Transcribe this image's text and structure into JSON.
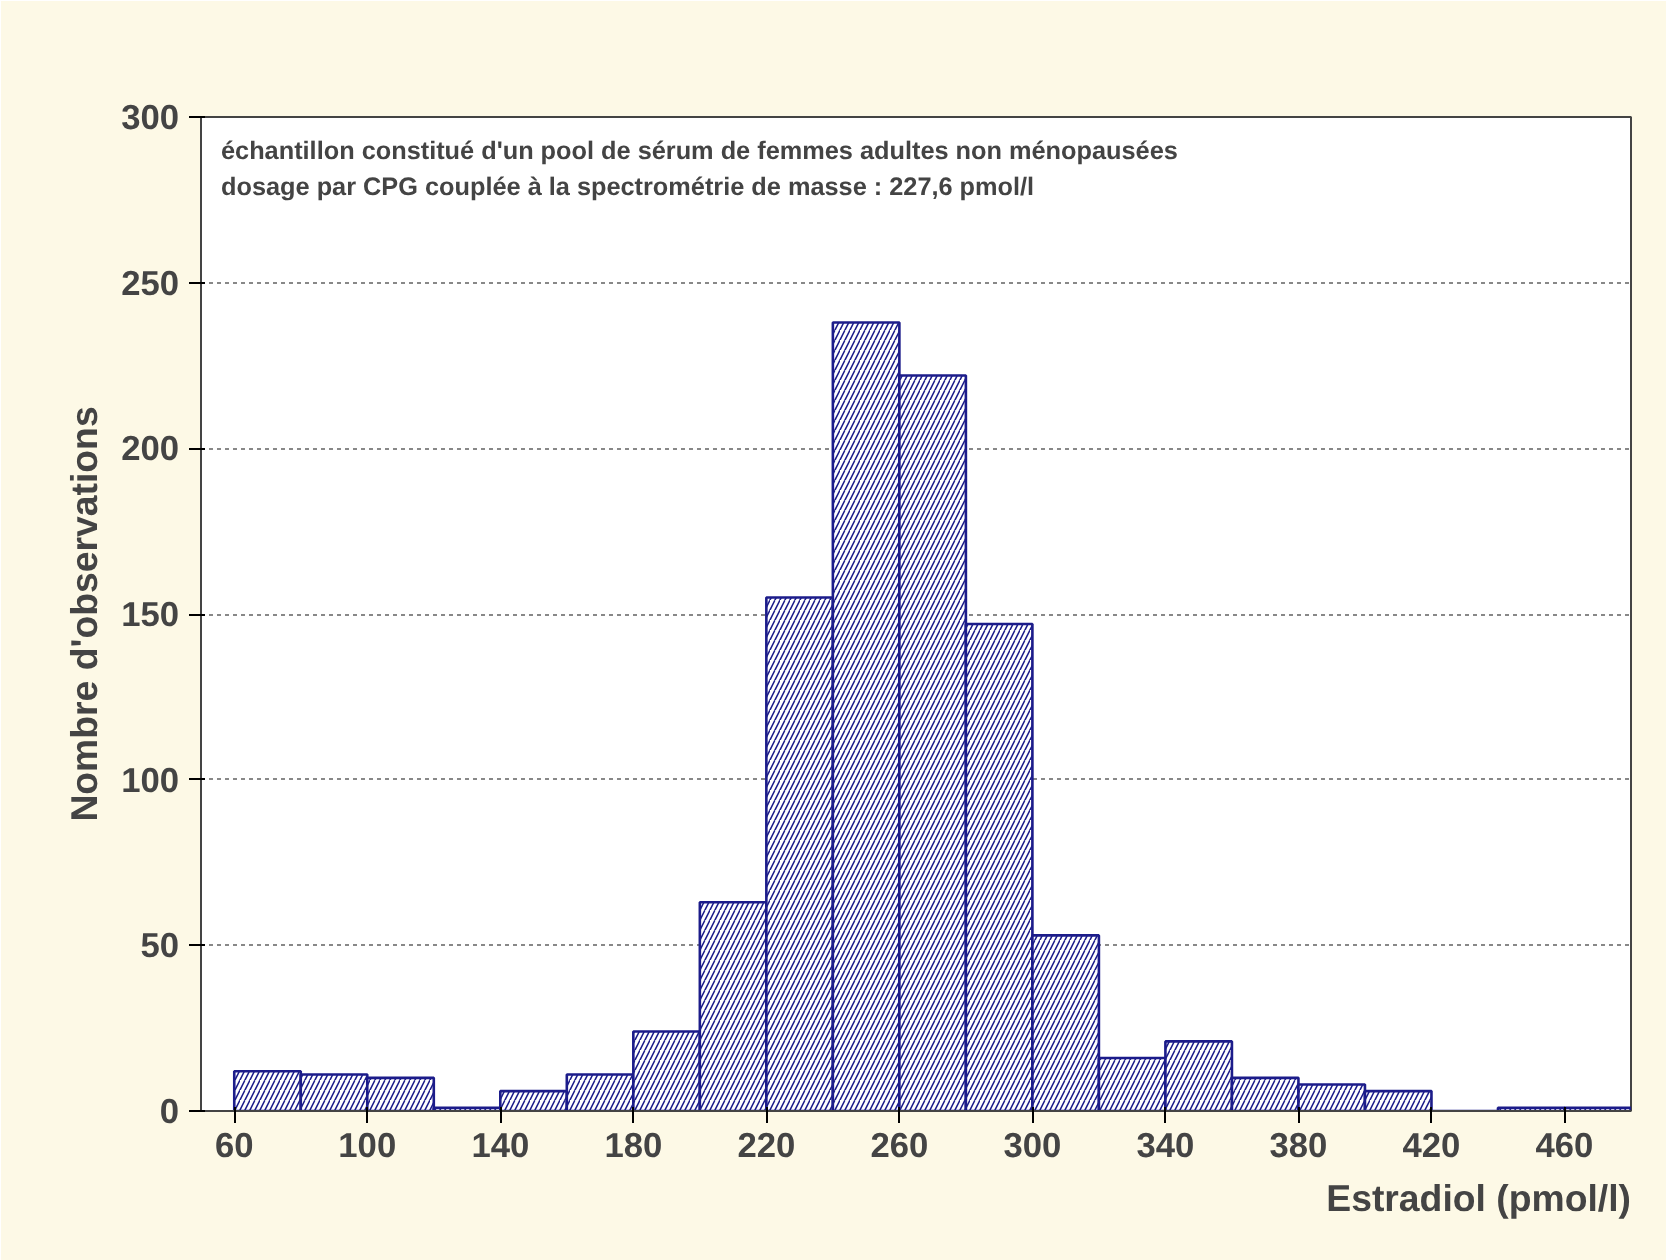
{
  "chart_data": {
    "type": "histogram",
    "xlabel": "Estradiol (pmol/l)",
    "ylabel": "Nombre d'observations",
    "annotations": [
      "échantillon constitué d'un pool de sérum de femmes adultes non ménopausées",
      "dosage par CPG couplée à la spectrométrie de masse : 227,6 pmol/l"
    ],
    "bins": [
      60,
      80,
      100,
      120,
      140,
      160,
      180,
      200,
      220,
      240,
      260,
      280,
      300,
      320,
      340,
      360,
      380,
      400,
      420,
      440,
      460,
      480
    ],
    "values": [
      12,
      11,
      10,
      1,
      6,
      11,
      24,
      63,
      155,
      238,
      222,
      147,
      53,
      16,
      21,
      10,
      8,
      6,
      0,
      1,
      1
    ],
    "color": "#1c1c8a",
    "xlim": [
      50,
      480
    ],
    "ylim": [
      0,
      300
    ],
    "xticks": [
      60,
      100,
      140,
      180,
      220,
      260,
      300,
      340,
      380,
      420,
      460
    ],
    "yticks": [
      0,
      50,
      100,
      150,
      200,
      250,
      300
    ],
    "grid": "y"
  }
}
